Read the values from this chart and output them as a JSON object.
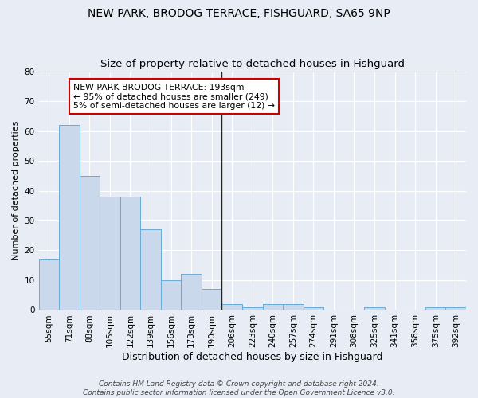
{
  "title": "NEW PARK, BRODOG TERRACE, FISHGUARD, SA65 9NP",
  "subtitle": "Size of property relative to detached houses in Fishguard",
  "xlabel": "Distribution of detached houses by size in Fishguard",
  "ylabel": "Number of detached properties",
  "categories": [
    "55sqm",
    "71sqm",
    "88sqm",
    "105sqm",
    "122sqm",
    "139sqm",
    "156sqm",
    "173sqm",
    "190sqm",
    "206sqm",
    "223sqm",
    "240sqm",
    "257sqm",
    "274sqm",
    "291sqm",
    "308sqm",
    "325sqm",
    "341sqm",
    "358sqm",
    "375sqm",
    "392sqm"
  ],
  "values": [
    17,
    62,
    45,
    38,
    38,
    27,
    10,
    12,
    7,
    2,
    1,
    2,
    2,
    1,
    0,
    0,
    1,
    0,
    0,
    1,
    1
  ],
  "bar_color": "#c9d9eb",
  "bar_edge_color": "#6aaad4",
  "bar_width": 1.0,
  "vline_x": 8.5,
  "vline_color": "#222222",
  "annotation_text": "NEW PARK BRODOG TERRACE: 193sqm\n← 95% of detached houses are smaller (249)\n5% of semi-detached houses are larger (12) →",
  "annotation_box_color": "#ffffff",
  "annotation_box_edge_color": "#cc0000",
  "ylim": [
    0,
    80
  ],
  "yticks": [
    0,
    10,
    20,
    30,
    40,
    50,
    60,
    70,
    80
  ],
  "background_color": "#e8edf5",
  "grid_color": "#ffffff",
  "title_fontsize": 10,
  "subtitle_fontsize": 9.5,
  "xlabel_fontsize": 9,
  "ylabel_fontsize": 8,
  "tick_fontsize": 7.5,
  "annotation_fontsize": 7.8,
  "footer_text": "Contains HM Land Registry data © Crown copyright and database right 2024.\nContains public sector information licensed under the Open Government Licence v3.0.",
  "footer_fontsize": 6.5
}
